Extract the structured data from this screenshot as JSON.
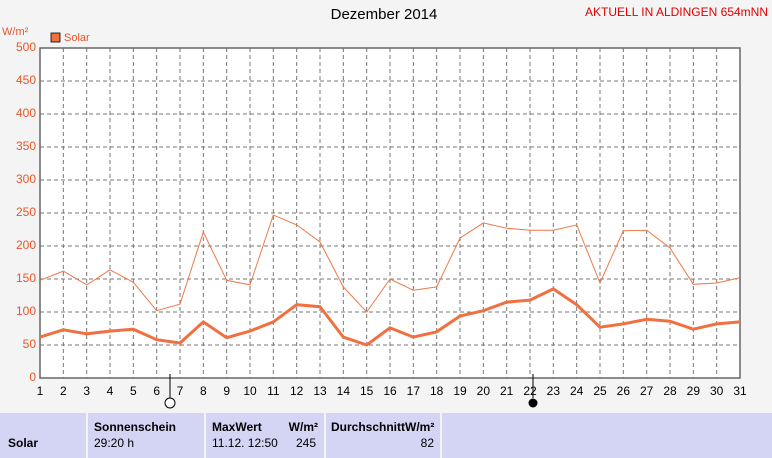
{
  "chart_data": {
    "type": "line",
    "title": "Dezember 2014",
    "y_label": "W/m²",
    "categories": [
      "1",
      "2",
      "3",
      "4",
      "5",
      "6",
      "7",
      "8",
      "9",
      "10",
      "11",
      "12",
      "13",
      "14",
      "15",
      "16",
      "17",
      "18",
      "19",
      "20",
      "21",
      "22",
      "23",
      "24",
      "25",
      "26",
      "27",
      "28",
      "29",
      "30",
      "31"
    ],
    "series": [
      {
        "color": "#f07848",
        "values": [
          148,
          162,
          141,
          164,
          145,
          102,
          112,
          221,
          148,
          141,
          247,
          232,
          206,
          138,
          100,
          150,
          133,
          138,
          212,
          235,
          227,
          224,
          224,
          232,
          144,
          223,
          224,
          197,
          142,
          144,
          152
        ]
      },
      {
        "name": "Solar",
        "color": "#f07040",
        "values": [
          62,
          73,
          67,
          71,
          74,
          58,
          53,
          85,
          61,
          71,
          85,
          111,
          108,
          62,
          50,
          76,
          62,
          70,
          94,
          102,
          115,
          118,
          135,
          111,
          77,
          82,
          89,
          86,
          74,
          82,
          85
        ]
      }
    ],
    "ylim": [
      0,
      500
    ],
    "yticks": [
      0,
      50,
      100,
      150,
      200,
      250,
      300,
      350,
      400,
      450,
      500
    ],
    "grid": true
  },
  "site_label": "AKTUELL IN ALDINGEN 654mNN",
  "summary": {
    "row_label": "Solar",
    "sunshine": {
      "header": "Sonnenschein",
      "value": "29:20 h"
    },
    "max": {
      "header": "MaxWert",
      "unit": "W/m²",
      "time": "11.12. 12:50",
      "value": "245"
    },
    "avg": {
      "header": "DurchschnittW/m²",
      "value": "82"
    }
  }
}
